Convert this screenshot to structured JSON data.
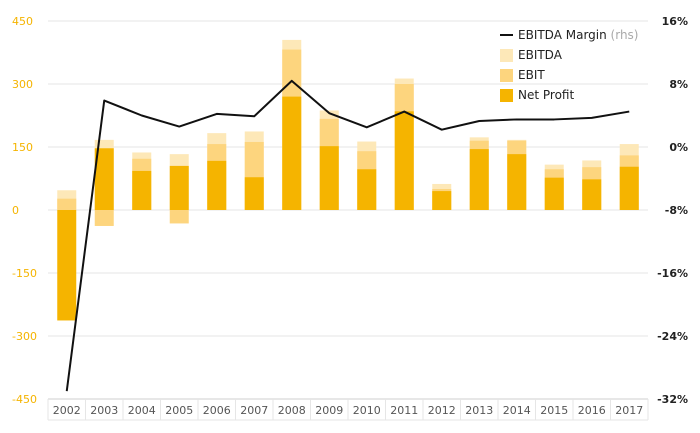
{
  "chart_data": {
    "type": "bar",
    "categories": [
      "2002",
      "2003",
      "2004",
      "2005",
      "2006",
      "2007",
      "2008",
      "2009",
      "2010",
      "2011",
      "2012",
      "2013",
      "2014",
      "2015",
      "2016",
      "2017"
    ],
    "series": [
      {
        "name": "EBITDA",
        "kind": "bar",
        "values": [
          47,
          167,
          137,
          133,
          183,
          187,
          405,
          237,
          163,
          313,
          62,
          173,
          167,
          108,
          118,
          157
        ],
        "color": "#fde8b8"
      },
      {
        "name": "EBIT",
        "kind": "bar",
        "values": [
          27,
          -38,
          122,
          -32,
          157,
          162,
          382,
          217,
          140,
          300,
          50,
          165,
          165,
          97,
          102,
          130
        ],
        "color": "#fdd57e"
      },
      {
        "name": "Net Profit",
        "kind": "bar",
        "values": [
          -263,
          147,
          93,
          105,
          117,
          78,
          270,
          152,
          97,
          235,
          45,
          145,
          133,
          77,
          73,
          103
        ],
        "color": "#f5b400"
      },
      {
        "name": "EBITDA Margin",
        "kind": "line",
        "axis": "right",
        "values": [
          -31.0,
          5.9,
          4.0,
          2.6,
          4.2,
          3.9,
          8.4,
          4.3,
          2.5,
          4.5,
          2.2,
          3.3,
          3.5,
          3.5,
          3.7,
          4.5
        ],
        "color": "#111111"
      }
    ],
    "y_left": {
      "min": -450,
      "max": 450,
      "ticks": [
        "450",
        "300",
        "150",
        "0",
        "-150",
        "-300",
        "-450"
      ]
    },
    "y_right": {
      "min": -32,
      "max": 16,
      "ticks": [
        "16%",
        "8%",
        "0%",
        "-8%",
        "-16%",
        "-24%",
        "-32%"
      ]
    },
    "legend": {
      "placement": "top-right",
      "items": [
        {
          "label": "EBITDA Margin",
          "note": "(rhs)",
          "symbol": "line",
          "color": "#111111"
        },
        {
          "label": "EBITDA",
          "symbol": "box",
          "color": "#fde8b8"
        },
        {
          "label": "EBIT",
          "symbol": "box",
          "color": "#fdd57e"
        },
        {
          "label": "Net Profit",
          "symbol": "box",
          "color": "#f5b400"
        }
      ]
    },
    "grid": true
  }
}
